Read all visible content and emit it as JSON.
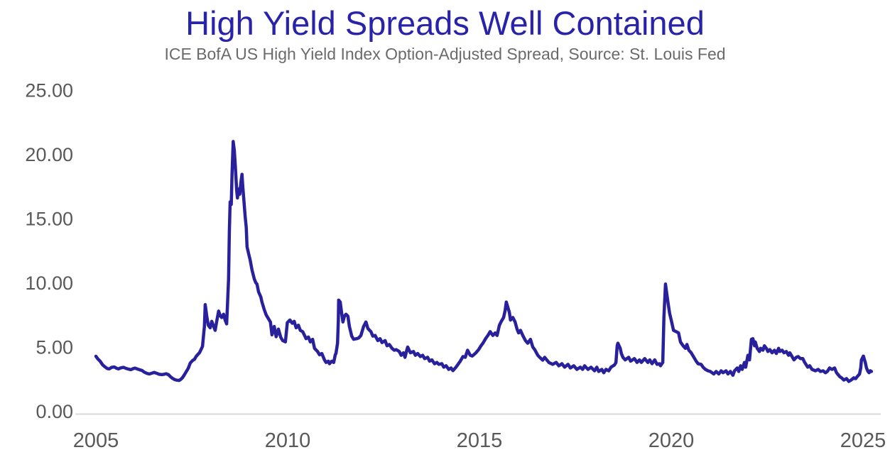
{
  "chart_data": {
    "type": "line",
    "title": "High Yield Spreads Well Contained",
    "subtitle": "ICE BofA US High Yield Index Option-Adjusted Spread, Source: St. Louis Fed",
    "xlabel": "",
    "ylabel": "",
    "grid": false,
    "legend": false,
    "ylim": [
      0,
      25
    ],
    "xlim": [
      2004.45,
      2025.47
    ],
    "y_ticks": [
      "0.00",
      "5.00",
      "10.00",
      "15.00",
      "20.00",
      "25.00"
    ],
    "y_tick_values": [
      0,
      5,
      10,
      15,
      20,
      25
    ],
    "x_ticks": [
      "2005",
      "2010",
      "2015",
      "2020",
      "2025"
    ],
    "x_tick_years": [
      2005,
      2010,
      2015,
      2020,
      2025
    ],
    "colors": {
      "line": "#28219B",
      "title": "#2823A8",
      "subtitle_text": "#6A6A6A",
      "axis_text": "#595959",
      "axis_line": "#D9D9D9",
      "background": "#FFFFFF"
    },
    "series": [
      {
        "name": "ICE BofA US High Yield Index Option-Adjusted Spread",
        "x": [
          2005.0,
          2005.06,
          2005.11,
          2005.18,
          2005.24,
          2005.3,
          2005.35,
          2005.41,
          2005.48,
          2005.54,
          2005.59,
          2005.65,
          2005.72,
          2005.78,
          2005.85,
          2005.91,
          2005.97,
          2006.02,
          2006.09,
          2006.15,
          2006.2,
          2006.26,
          2006.33,
          2006.39,
          2006.46,
          2006.52,
          2006.59,
          2006.65,
          2006.72,
          2006.78,
          2006.83,
          2006.89,
          2006.94,
          2007.0,
          2007.06,
          2007.11,
          2007.17,
          2007.22,
          2007.26,
          2007.31,
          2007.36,
          2007.41,
          2007.46,
          2007.52,
          2007.57,
          2007.61,
          2007.65,
          2007.7,
          2007.74,
          2007.78,
          2007.81,
          2007.83,
          2007.85,
          2007.89,
          2007.93,
          2007.98,
          2008.02,
          2008.07,
          2008.11,
          2008.15,
          2008.2,
          2008.24,
          2008.28,
          2008.33,
          2008.37,
          2008.41,
          2008.43,
          2008.46,
          2008.48,
          2008.5,
          2008.53,
          2008.55,
          2008.58,
          2008.61,
          2008.64,
          2008.67,
          2008.69,
          2008.72,
          2008.75,
          2008.78,
          2008.81,
          2008.83,
          2008.86,
          2008.89,
          2008.92,
          2008.94,
          2008.98,
          2009.02,
          2009.07,
          2009.13,
          2009.17,
          2009.2,
          2009.24,
          2009.3,
          2009.33,
          2009.39,
          2009.44,
          2009.5,
          2009.55,
          2009.59,
          2009.65,
          2009.7,
          2009.76,
          2009.82,
          2009.87,
          2009.94,
          2009.99,
          2010.06,
          2010.12,
          2010.17,
          2010.22,
          2010.28,
          2010.33,
          2010.39,
          2010.44,
          2010.48,
          2010.54,
          2010.59,
          2010.65,
          2010.7,
          2010.78,
          2010.83,
          2010.89,
          2010.96,
          2011.0,
          2011.06,
          2011.09,
          2011.15,
          2011.2,
          2011.24,
          2011.26,
          2011.3,
          2011.32,
          2011.33,
          2011.37,
          2011.41,
          2011.44,
          2011.48,
          2011.52,
          2011.57,
          2011.61,
          2011.67,
          2011.72,
          2011.8,
          2011.85,
          2011.91,
          2011.98,
          2012.04,
          2012.09,
          2012.17,
          2012.22,
          2012.28,
          2012.35,
          2012.41,
          2012.46,
          2012.54,
          2012.59,
          2012.65,
          2012.72,
          2012.78,
          2012.83,
          2012.91,
          2012.96,
          2013.02,
          2013.06,
          2013.11,
          2013.13,
          2013.2,
          2013.28,
          2013.33,
          2013.39,
          2013.46,
          2013.52,
          2013.57,
          2013.65,
          2013.7,
          2013.76,
          2013.83,
          2013.89,
          2013.94,
          2014.02,
          2014.07,
          2014.13,
          2014.2,
          2014.26,
          2014.31,
          2014.39,
          2014.44,
          2014.5,
          2014.57,
          2014.63,
          2014.69,
          2014.76,
          2014.81,
          2014.87,
          2014.91,
          2014.98,
          2015.04,
          2015.09,
          2015.17,
          2015.22,
          2015.28,
          2015.35,
          2015.41,
          2015.46,
          2015.52,
          2015.57,
          2015.63,
          2015.67,
          2015.7,
          2015.78,
          2015.81,
          2015.87,
          2015.93,
          2015.98,
          2016.02,
          2016.07,
          2016.13,
          2016.2,
          2016.26,
          2016.33,
          2016.39,
          2016.44,
          2016.52,
          2016.57,
          2016.65,
          2016.7,
          2016.81,
          2016.91,
          2017.0,
          2017.07,
          2017.15,
          2017.22,
          2017.31,
          2017.37,
          2017.46,
          2017.54,
          2017.63,
          2017.69,
          2017.74,
          2017.83,
          2017.91,
          2018.0,
          2018.06,
          2018.11,
          2018.19,
          2018.24,
          2018.3,
          2018.37,
          2018.43,
          2018.52,
          2018.56,
          2018.59,
          2018.61,
          2018.67,
          2018.7,
          2018.74,
          2018.8,
          2018.89,
          2018.94,
          2019.04,
          2019.11,
          2019.17,
          2019.22,
          2019.31,
          2019.39,
          2019.44,
          2019.5,
          2019.57,
          2019.63,
          2019.69,
          2019.72,
          2019.78,
          2019.81,
          2019.85,
          2019.91,
          2019.96,
          2020.0,
          2020.06,
          2020.13,
          2020.19,
          2020.24,
          2020.31,
          2020.37,
          2020.41,
          2020.46,
          2020.52,
          2020.59,
          2020.65,
          2020.7,
          2020.78,
          2020.83,
          2020.89,
          2020.96,
          2021.02,
          2021.11,
          2021.17,
          2021.24,
          2021.3,
          2021.35,
          2021.43,
          2021.48,
          2021.54,
          2021.61,
          2021.65,
          2021.72,
          2021.76,
          2021.81,
          2021.85,
          2021.91,
          2021.94,
          2022.0,
          2022.04,
          2022.09,
          2022.13,
          2022.17,
          2022.19,
          2022.24,
          2022.3,
          2022.33,
          2022.39,
          2022.43,
          2022.48,
          2022.52,
          2022.57,
          2022.63,
          2022.69,
          2022.74,
          2022.8,
          2022.83,
          2022.89,
          2022.94,
          2023.0,
          2023.06,
          2023.09,
          2023.15,
          2023.2,
          2023.26,
          2023.31,
          2023.37,
          2023.43,
          2023.48,
          2023.56,
          2023.61,
          2023.67,
          2023.76,
          2023.83,
          2023.89,
          2023.96,
          2024.02,
          2024.07,
          2024.13,
          2024.19,
          2024.26,
          2024.31,
          2024.39,
          2024.44,
          2024.5,
          2024.57,
          2024.63,
          2024.69,
          2024.76,
          2024.81,
          2024.85,
          2024.91,
          2024.94,
          2024.96,
          2025.01,
          2025.06,
          2025.09,
          2025.13,
          2025.16,
          2025.19,
          2025.22
        ],
        "values": [
          4.28,
          4.05,
          3.9,
          3.6,
          3.45,
          3.32,
          3.3,
          3.42,
          3.45,
          3.34,
          3.3,
          3.38,
          3.42,
          3.34,
          3.28,
          3.24,
          3.32,
          3.36,
          3.28,
          3.22,
          3.18,
          3.05,
          2.95,
          2.9,
          2.96,
          3.02,
          2.95,
          2.88,
          2.85,
          2.88,
          2.92,
          2.85,
          2.7,
          2.56,
          2.46,
          2.42,
          2.4,
          2.5,
          2.62,
          2.85,
          3.1,
          3.35,
          3.75,
          3.95,
          4.05,
          4.25,
          4.4,
          4.55,
          4.8,
          5.05,
          6.0,
          6.6,
          8.3,
          7.4,
          6.7,
          6.5,
          7.0,
          6.6,
          6.3,
          7.0,
          7.8,
          7.45,
          7.3,
          7.55,
          7.1,
          6.8,
          8.2,
          10.3,
          14.0,
          16.3,
          16.1,
          18.5,
          21.0,
          20.3,
          18.8,
          17.2,
          16.6,
          17.3,
          16.9,
          17.8,
          18.45,
          17.5,
          16.4,
          15.2,
          14.3,
          12.8,
          12.3,
          11.8,
          11.0,
          10.3,
          10.0,
          9.9,
          9.3,
          8.9,
          8.5,
          7.9,
          7.5,
          7.2,
          6.95,
          5.95,
          6.6,
          5.8,
          6.4,
          5.75,
          5.5,
          5.4,
          6.9,
          7.1,
          6.85,
          7.0,
          6.5,
          6.7,
          6.3,
          6.2,
          5.9,
          5.65,
          5.78,
          5.4,
          5.6,
          4.9,
          4.65,
          4.4,
          4.5,
          4.0,
          3.8,
          3.9,
          3.7,
          3.9,
          3.8,
          4.4,
          4.5,
          5.3,
          7.0,
          8.65,
          8.5,
          7.6,
          6.95,
          7.4,
          7.55,
          7.4,
          6.6,
          5.85,
          5.6,
          5.65,
          5.7,
          5.9,
          6.6,
          6.95,
          6.45,
          6.2,
          5.85,
          5.9,
          5.5,
          5.65,
          5.35,
          5.5,
          5.1,
          5.2,
          4.9,
          4.75,
          4.8,
          4.65,
          4.36,
          4.55,
          4.2,
          4.8,
          5.0,
          4.55,
          4.65,
          4.36,
          4.5,
          4.26,
          4.36,
          4.1,
          4.2,
          3.9,
          4.0,
          3.7,
          3.8,
          3.65,
          3.7,
          3.43,
          3.54,
          3.26,
          3.37,
          3.16,
          3.44,
          3.65,
          3.9,
          4.26,
          4.2,
          4.75,
          4.36,
          4.3,
          4.45,
          4.55,
          4.8,
          5.1,
          5.3,
          5.7,
          5.9,
          6.2,
          5.9,
          6.1,
          5.9,
          6.7,
          7.0,
          7.3,
          7.85,
          8.5,
          7.7,
          7.1,
          7.3,
          6.95,
          6.4,
          6.1,
          6.3,
          5.9,
          5.5,
          5.3,
          5.6,
          5.0,
          4.8,
          4.36,
          4.2,
          3.98,
          4.2,
          3.8,
          3.65,
          3.8,
          3.54,
          3.7,
          3.43,
          3.65,
          3.37,
          3.54,
          3.26,
          3.43,
          3.26,
          3.54,
          3.26,
          3.43,
          3.15,
          3.43,
          3.1,
          3.26,
          3.0,
          3.26,
          3.15,
          3.43,
          3.6,
          3.8,
          5.1,
          5.3,
          4.9,
          4.5,
          4.2,
          4.0,
          4.2,
          3.9,
          4.1,
          3.8,
          4.0,
          3.8,
          4.1,
          3.8,
          4.0,
          3.7,
          4.0,
          3.65,
          3.7,
          3.54,
          3.8,
          7.3,
          9.9,
          8.6,
          7.6,
          7.1,
          6.3,
          6.2,
          6.1,
          5.4,
          5.1,
          4.9,
          5.2,
          4.75,
          4.55,
          4.2,
          3.9,
          3.7,
          3.65,
          3.43,
          3.26,
          3.15,
          3.1,
          2.9,
          3.1,
          2.9,
          3.15,
          3.0,
          3.15,
          2.9,
          3.1,
          2.8,
          3.15,
          3.37,
          3.1,
          3.54,
          3.26,
          3.8,
          3.43,
          4.36,
          4.0,
          5.6,
          5.65,
          5.1,
          5.4,
          4.9,
          4.65,
          4.9,
          4.75,
          5.1,
          4.9,
          4.65,
          4.8,
          4.55,
          4.75,
          4.5,
          4.9,
          4.65,
          4.75,
          4.55,
          4.65,
          4.36,
          4.55,
          4.26,
          4.0,
          4.2,
          4.26,
          4.1,
          4.1,
          3.8,
          3.43,
          3.54,
          3.26,
          3.15,
          3.26,
          3.1,
          3.15,
          3.0,
          3.1,
          3.37,
          3.26,
          3.37,
          3.0,
          2.7,
          2.6,
          2.43,
          2.54,
          2.32,
          2.43,
          2.6,
          2.54,
          2.7,
          2.9,
          3.37,
          4.0,
          4.3,
          3.8,
          3.37,
          3.1,
          3.0,
          3.15,
          3.1
        ]
      }
    ]
  }
}
